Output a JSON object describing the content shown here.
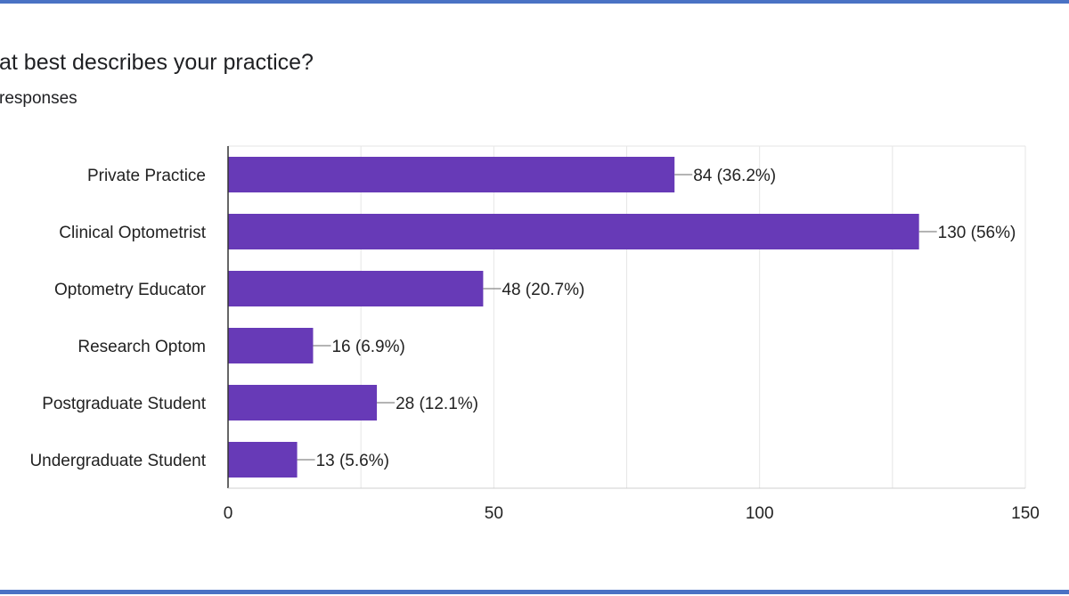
{
  "header": {
    "title": "at best describes your practice?",
    "subtitle": "responses"
  },
  "colors": {
    "bar": "#673ab7",
    "frame": "#4a72c4",
    "grid": "#e6e6e6",
    "axis": "#333333"
  },
  "chart_data": {
    "type": "bar",
    "orientation": "horizontal",
    "categories": [
      "Private Practice",
      "Clinical Optometrist",
      "Optometry Educator",
      "Research Optom",
      "Postgraduate Student",
      "Undergraduate Student"
    ],
    "values": [
      84,
      130,
      48,
      16,
      28,
      13
    ],
    "data_labels": [
      "84 (36.2%)",
      "130 (56%)",
      "48 (20.7%)",
      "16 (6.9%)",
      "28 (12.1%)",
      "13 (5.6%)"
    ],
    "xlim": [
      0,
      150
    ],
    "x_ticks": [
      0,
      50,
      100,
      150
    ],
    "grid": true,
    "title": "at best describes your practice?",
    "xlabel": "",
    "ylabel": ""
  }
}
